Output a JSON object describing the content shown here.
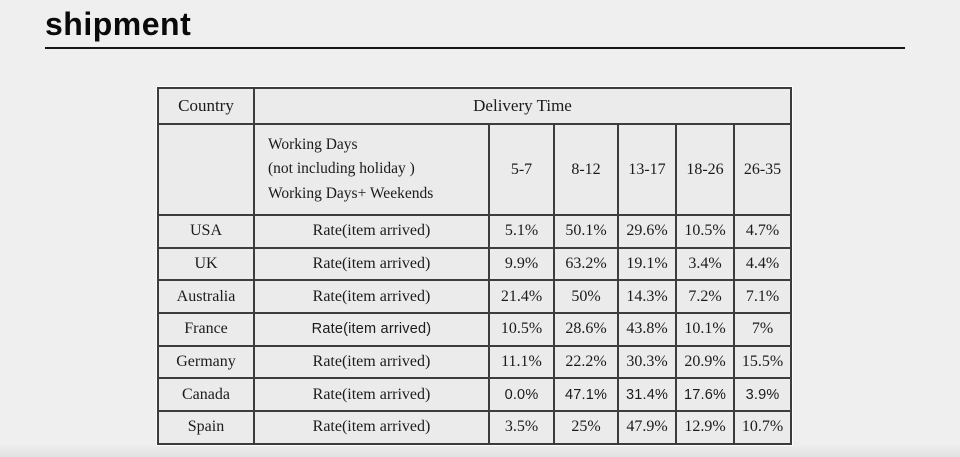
{
  "page": {
    "title": "shipment"
  },
  "shipment_table": {
    "header": {
      "country": "Country",
      "delivery_time": "Delivery Time",
      "working_days_lines": [
        "Working Days",
        "(not including holiday )",
        "Working Days+ Weekends"
      ],
      "day_ranges": [
        "5-7",
        "8-12",
        "13-17",
        "18-26",
        "26-35"
      ]
    },
    "rows": [
      {
        "country": "USA",
        "rate_label": "Rate(item arrived)",
        "values": [
          "5.1%",
          "50.1%",
          "29.6%",
          "10.5%",
          "4.7%"
        ]
      },
      {
        "country": "UK",
        "rate_label": "Rate(item arrived)",
        "values": [
          "9.9%",
          "63.2%",
          "19.1%",
          "3.4%",
          "4.4%"
        ]
      },
      {
        "country": "Australia",
        "rate_label": "Rate(item arrived)",
        "values": [
          "21.4%",
          "50%",
          "14.3%",
          "7.2%",
          "7.1%"
        ]
      },
      {
        "country": "France",
        "rate_label": "Rate(item arrived)",
        "values": [
          "10.5%",
          "28.6%",
          "43.8%",
          "10.1%",
          "7%"
        ]
      },
      {
        "country": "Germany",
        "rate_label": "Rate(item arrived)",
        "values": [
          "11.1%",
          "22.2%",
          "30.3%",
          "20.9%",
          "15.5%"
        ]
      },
      {
        "country": "Canada",
        "rate_label": "Rate(item arrived)",
        "values": [
          "0.0%",
          "47.1%",
          "31.4%",
          "17.6%",
          "3.9%"
        ]
      },
      {
        "country": "Spain",
        "rate_label": "Rate(item arrived)",
        "values": [
          "3.5%",
          "25%",
          "47.9%",
          "12.9%",
          "10.7%"
        ]
      }
    ],
    "colors": {
      "page_background": "#efefef",
      "cell_background": "#ebebeb",
      "border": "#3c3c3c",
      "text": "#1b1b1b"
    }
  }
}
